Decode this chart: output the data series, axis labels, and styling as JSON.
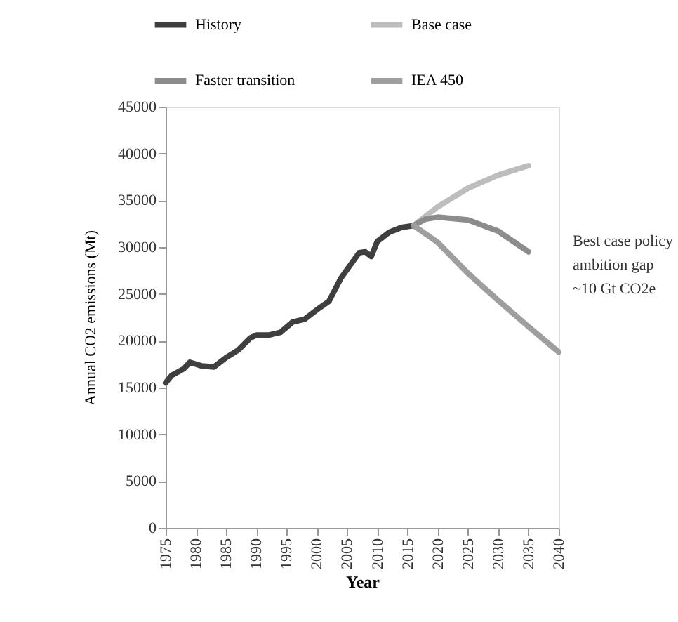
{
  "chart_data": {
    "type": "line",
    "xlabel": "Year",
    "ylabel": "Annual CO2 emissions (Mt)",
    "xlim": [
      1975,
      2040
    ],
    "xticks": [
      1975,
      1980,
      1985,
      1990,
      1995,
      2000,
      2005,
      2010,
      2015,
      2020,
      2025,
      2030,
      2035,
      2040
    ],
    "ylim": [
      0,
      45000
    ],
    "yticks": [
      0,
      5000,
      10000,
      15000,
      20000,
      25000,
      30000,
      35000,
      40000,
      45000
    ],
    "grid": false,
    "legend": "top",
    "line_style": "solid",
    "marker": "none",
    "annotations": [
      "Best case policy\nambition gap\n~10 Gt CO2e"
    ],
    "series": [
      {
        "name": "History",
        "color": "#3f3f3f",
        "x": [
          1975,
          1976,
          1978,
          1979,
          1981,
          1983,
          1985,
          1987,
          1989,
          1990,
          1992,
          1994,
          1996,
          1998,
          2000,
          2002,
          2004,
          2006,
          2007,
          2008,
          2009,
          2010,
          2012,
          2014,
          2016
        ],
        "values": [
          15500,
          16300,
          17000,
          17700,
          17300,
          17200,
          18200,
          19000,
          20300,
          20600,
          20600,
          20900,
          22000,
          22300,
          23300,
          24200,
          26700,
          28500,
          29400,
          29500,
          29000,
          30600,
          31600,
          32100,
          32300
        ]
      },
      {
        "name": "Base case",
        "color": "#bdbdbd",
        "x": [
          2016,
          2020,
          2025,
          2030,
          2035
        ],
        "values": [
          32300,
          34300,
          36300,
          37700,
          38700
        ]
      },
      {
        "name": "Faster transition",
        "color": "#8c8c8c",
        "x": [
          2016,
          2018,
          2020,
          2025,
          2030,
          2035
        ],
        "values": [
          32300,
          33000,
          33200,
          32900,
          31700,
          29500
        ]
      },
      {
        "name": "IEA 450",
        "color": "#9e9e9e",
        "x": [
          2016,
          2020,
          2025,
          2030,
          2035,
          2040
        ],
        "values": [
          32300,
          30500,
          27200,
          24300,
          21500,
          18800
        ]
      }
    ]
  }
}
